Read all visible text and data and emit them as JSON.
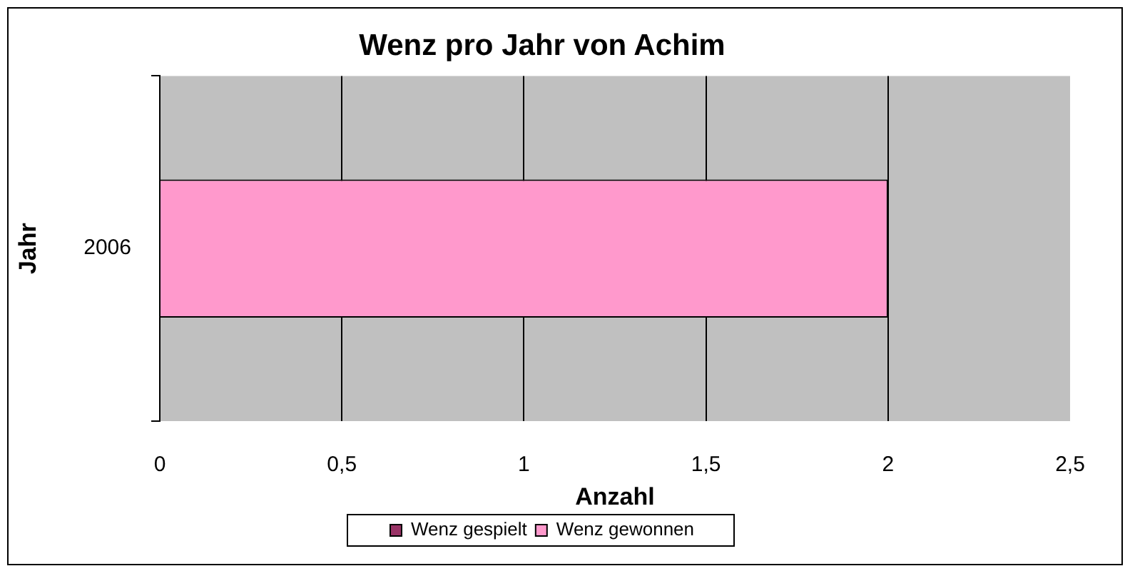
{
  "chart_data": {
    "type": "bar",
    "orientation": "horizontal",
    "title": "Wenz pro Jahr von Achim",
    "xlabel": "Anzahl",
    "ylabel": "Jahr",
    "categories": [
      "2006"
    ],
    "series": [
      {
        "name": "Wenz gespielt",
        "color": "#993366",
        "values": [
          null
        ]
      },
      {
        "name": "Wenz gewonnen",
        "color": "#ff99cc",
        "values": [
          2
        ]
      }
    ],
    "xlim": [
      0,
      2.5
    ],
    "xticks": [
      0,
      {
        "value": 0.5,
        "label": "0,5"
      },
      1,
      {
        "value": 1.5,
        "label": "1,5"
      },
      2,
      {
        "value": 2.5,
        "label": "2,5"
      }
    ],
    "grid": "x",
    "legend": "bottom"
  }
}
